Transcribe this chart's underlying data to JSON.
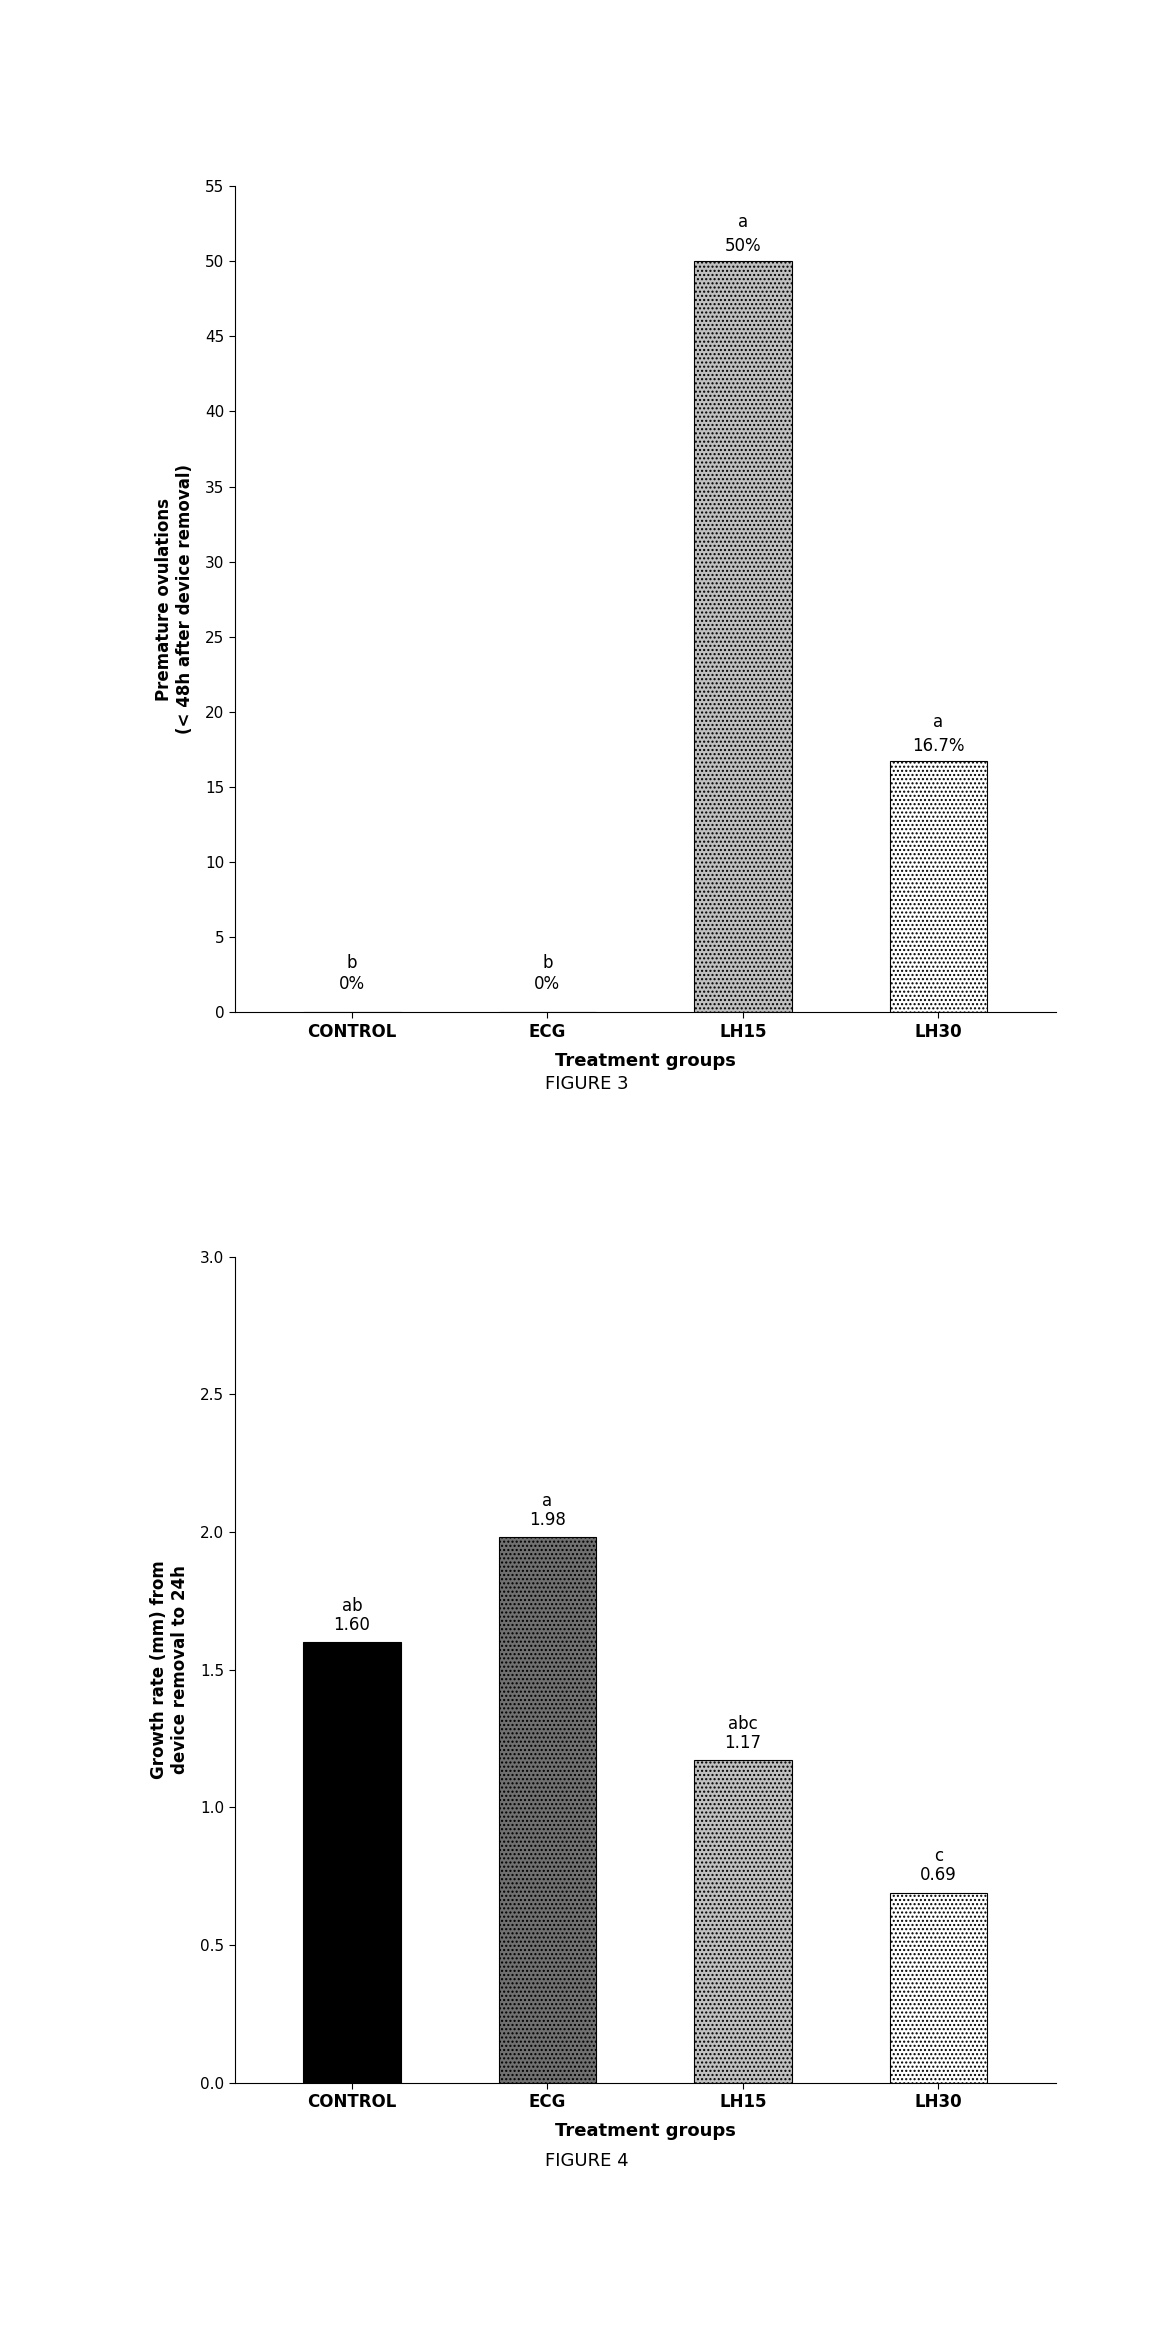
{
  "fig3": {
    "categories": [
      "CONTROL",
      "ECG",
      "LH15",
      "LH30"
    ],
    "values": [
      0,
      0,
      50,
      16.7
    ],
    "labels": [
      "0%",
      "0%",
      "50%",
      "16.7%"
    ],
    "stat_labels": [
      "b",
      "b",
      "a",
      "a"
    ],
    "bar_facecolors": [
      "#c8c8c8",
      "#c8c8c8",
      "#c0c0c0",
      "#ffffff"
    ],
    "bar_hatches": [
      "",
      "",
      "....",
      "...."
    ],
    "bar_edgecolors": [
      "black",
      "black",
      "black",
      "black"
    ],
    "ylabel": "Premature ovulations\n(< 48h after device removal)",
    "xlabel": "Treatment groups",
    "ylim": [
      0,
      55
    ],
    "yticks": [
      0,
      5,
      10,
      15,
      20,
      25,
      30,
      35,
      40,
      45,
      50,
      55
    ],
    "figure_label": "FIGURE 3"
  },
  "fig4": {
    "categories": [
      "CONTROL",
      "ECG",
      "LH15",
      "LH30"
    ],
    "values": [
      1.6,
      1.98,
      1.17,
      0.69
    ],
    "labels": [
      "1.60",
      "1.98",
      "1.17",
      "0.69"
    ],
    "stat_labels": [
      "ab",
      "a",
      "abc",
      "c"
    ],
    "bar_facecolors": [
      "#000000",
      "#707070",
      "#c0c0c0",
      "#ffffff"
    ],
    "bar_hatches": [
      "",
      "....",
      "....",
      "...."
    ],
    "bar_edgecolors": [
      "black",
      "black",
      "black",
      "black"
    ],
    "ylabel": "Growth rate (mm) from\ndevice removal to 24h",
    "xlabel": "Treatment groups",
    "ylim": [
      0.0,
      3.0
    ],
    "yticks": [
      0.0,
      0.5,
      1.0,
      1.5,
      2.0,
      2.5,
      3.0
    ],
    "figure_label": "FIGURE 4"
  },
  "fig_width": 11.73,
  "fig_height": 23.27,
  "dpi": 100
}
